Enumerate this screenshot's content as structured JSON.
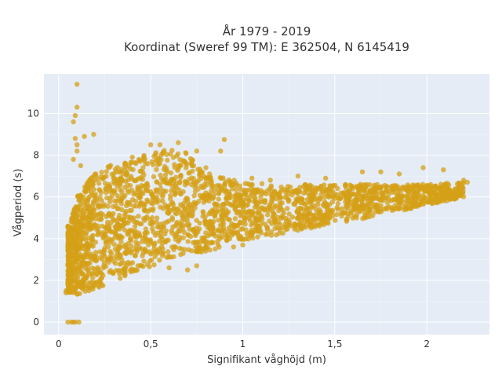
{
  "chart_data": {
    "type": "scatter",
    "title_lines": [
      "År 1979 - 2019",
      "Koordinat (Sweref 99 TM): E 362504, N 6145419"
    ],
    "xlabel": "Signifikant våghöjd (m)",
    "ylabel": "Vågperiod (s)",
    "xlim": [
      -0.08,
      2.34
    ],
    "ylim": [
      -0.6,
      11.9
    ],
    "x_ticks": [
      0,
      0.5,
      1,
      1.5,
      2
    ],
    "x_tick_labels": [
      "0",
      "0,5",
      "1",
      "1,5",
      "2"
    ],
    "y_ticks": [
      0,
      2,
      4,
      6,
      8,
      10
    ],
    "y_tick_labels": [
      "0",
      "2",
      "4",
      "6",
      "8",
      "10"
    ],
    "grid": true,
    "marker_color": "#D4A017",
    "background_color": "#E5ECF6",
    "dense_band": {
      "x_range": [
        0.05,
        2.2
      ],
      "lower_edge": [
        [
          0.06,
          1.4
        ],
        [
          0.1,
          1.3
        ],
        [
          0.2,
          1.6
        ],
        [
          0.4,
          2.3
        ],
        [
          0.6,
          3.0
        ],
        [
          0.8,
          3.4
        ],
        [
          1.0,
          3.9
        ],
        [
          1.2,
          4.2
        ],
        [
          1.5,
          4.7
        ],
        [
          1.8,
          5.2
        ],
        [
          2.0,
          5.6
        ],
        [
          2.2,
          6.0
        ]
      ],
      "upper_edge": [
        [
          0.06,
          4.6
        ],
        [
          0.1,
          6.0
        ],
        [
          0.2,
          7.2
        ],
        [
          0.3,
          7.6
        ],
        [
          0.5,
          8.1
        ],
        [
          0.6,
          8.3
        ],
        [
          0.7,
          8.1
        ],
        [
          0.8,
          7.2
        ],
        [
          1.0,
          6.7
        ],
        [
          1.2,
          6.6
        ],
        [
          1.5,
          6.6
        ],
        [
          1.8,
          6.6
        ],
        [
          2.0,
          6.6
        ],
        [
          2.2,
          6.7
        ]
      ]
    },
    "outliers": [
      {
        "x": 0.1,
        "y": 11.4
      },
      {
        "x": 0.1,
        "y": 10.3
      },
      {
        "x": 0.09,
        "y": 9.9
      },
      {
        "x": 0.08,
        "y": 9.6
      },
      {
        "x": 0.14,
        "y": 8.9
      },
      {
        "x": 0.19,
        "y": 9.0
      },
      {
        "x": 0.09,
        "y": 8.8
      },
      {
        "x": 0.1,
        "y": 8.5
      },
      {
        "x": 0.1,
        "y": 8.2
      },
      {
        "x": 0.12,
        "y": 7.5
      },
      {
        "x": 0.08,
        "y": 7.8
      },
      {
        "x": 0.05,
        "y": 4.3
      },
      {
        "x": 0.06,
        "y": 3.4
      },
      {
        "x": 0.04,
        "y": 1.5
      },
      {
        "x": 0.04,
        "y": 1.4
      },
      {
        "x": 0.05,
        "y": 0.0
      },
      {
        "x": 0.07,
        "y": 0.0
      },
      {
        "x": 0.08,
        "y": 0.0
      },
      {
        "x": 0.09,
        "y": 0.0
      },
      {
        "x": 0.11,
        "y": 0.0
      },
      {
        "x": 0.9,
        "y": 8.75
      },
      {
        "x": 0.88,
        "y": 8.2
      },
      {
        "x": 0.55,
        "y": 8.5
      },
      {
        "x": 0.5,
        "y": 8.5
      },
      {
        "x": 0.65,
        "y": 8.6
      },
      {
        "x": 0.4,
        "y": 7.9
      },
      {
        "x": 0.75,
        "y": 8.2
      },
      {
        "x": 0.8,
        "y": 7.4
      },
      {
        "x": 0.82,
        "y": 7.1
      },
      {
        "x": 0.6,
        "y": 2.6
      },
      {
        "x": 0.7,
        "y": 2.5
      },
      {
        "x": 0.75,
        "y": 2.7
      },
      {
        "x": 1.98,
        "y": 7.4
      },
      {
        "x": 2.09,
        "y": 7.3
      },
      {
        "x": 2.2,
        "y": 6.8
      },
      {
        "x": 2.22,
        "y": 6.7
      },
      {
        "x": 1.65,
        "y": 7.2
      },
      {
        "x": 1.75,
        "y": 7.2
      },
      {
        "x": 1.85,
        "y": 7.1
      },
      {
        "x": 2.12,
        "y": 6.3
      },
      {
        "x": 1.3,
        "y": 7.0
      },
      {
        "x": 1.45,
        "y": 6.9
      },
      {
        "x": 1.15,
        "y": 6.8
      },
      {
        "x": 1.05,
        "y": 6.9
      },
      {
        "x": 2.15,
        "y": 5.9
      },
      {
        "x": 1.0,
        "y": 3.7
      },
      {
        "x": 0.95,
        "y": 3.6
      },
      {
        "x": 0.85,
        "y": 3.5
      }
    ]
  }
}
